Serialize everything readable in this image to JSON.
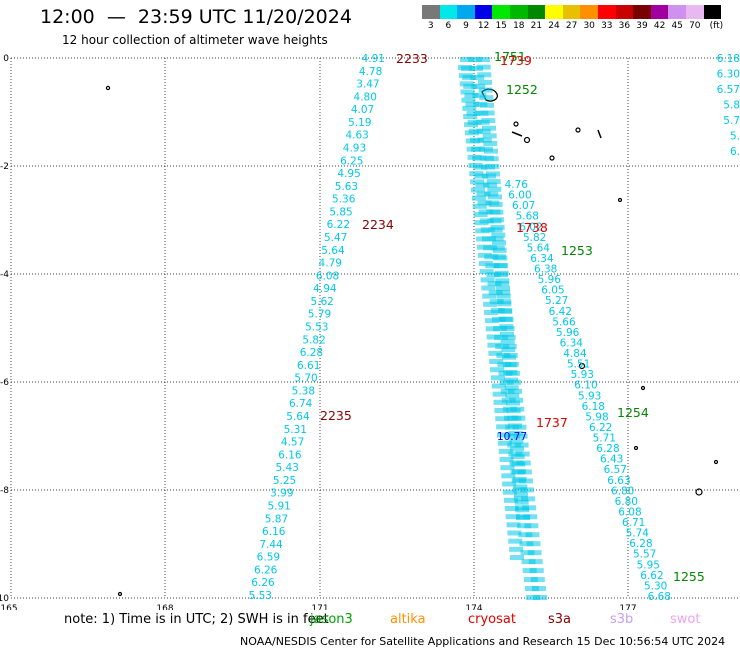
{
  "header": {
    "title": "12:00  —  23:59 UTC 11/20/2024",
    "subtitle": "12 hour collection of altimeter wave heights"
  },
  "colorbar": {
    "ticks": [
      "3",
      "6",
      "9",
      "12",
      "15",
      "18",
      "21",
      "24",
      "27",
      "30",
      "33",
      "36",
      "39",
      "42",
      "45",
      "70",
      "(ft)"
    ],
    "colors": [
      "#787878",
      "#00e8e8",
      "#00a8f0",
      "#0000e8",
      "#00e800",
      "#00b800",
      "#008800",
      "#ffff00",
      "#e8c000",
      "#ff9000",
      "#ff0000",
      "#c80000",
      "#780000",
      "#a000a0",
      "#d090f0",
      "#e8b8f0",
      "#000000"
    ]
  },
  "map": {
    "x_ticks": [
      "165",
      "168",
      "171",
      "174",
      "177"
    ],
    "y_ticks": [
      "0",
      "-2",
      "-4",
      "-6",
      "-8",
      "-10"
    ],
    "passes": [
      {
        "id": "2233",
        "color": "#8b0000"
      },
      {
        "id": "2234",
        "color": "#8b0000"
      },
      {
        "id": "2235",
        "color": "#8b0000"
      },
      {
        "id": "1751",
        "color": "#008800"
      },
      {
        "id": "1252",
        "color": "#008800"
      },
      {
        "id": "1253",
        "color": "#008800"
      },
      {
        "id": "1254",
        "color": "#008800"
      },
      {
        "id": "1255",
        "color": "#008800"
      },
      {
        "id": "1739",
        "color": "#e00000"
      },
      {
        "id": "1738",
        "color": "#e00000"
      },
      {
        "id": "1737",
        "color": "#e00000"
      }
    ],
    "track_a": [
      "4.91",
      "4.78",
      "3.47",
      "4.80",
      "4.07",
      "5.19",
      "4.63",
      "4.93",
      "6.25",
      "4.95",
      "5.63",
      "5.36",
      "5.85",
      "6.22",
      "5.47",
      "5.64",
      "4.79",
      "6.08",
      "4.94",
      "5.62",
      "5.79",
      "5.53",
      "5.82",
      "6.28",
      "6.61",
      "5.70",
      "5.38",
      "6.74",
      "5.64",
      "5.31",
      "4.57",
      "6.16",
      "5.43",
      "5.25",
      "3.99",
      "5.91",
      "5.87",
      "6.16",
      "7.44",
      "6.59",
      "6.26",
      "6.26",
      "5.53"
    ],
    "track_b": [
      "4.76",
      "6.00",
      "6.07",
      "5.68",
      "6.02",
      "5.82",
      "5.64",
      "6.34",
      "6.38",
      "5.96",
      "6.05",
      "5.27",
      "6.42",
      "5.66",
      "5.96",
      "6.34",
      "4.84",
      "5.51",
      "5.93",
      "6.10",
      "5.93",
      "6.18",
      "5.98",
      "6.22",
      "5.71",
      "6.28",
      "6.43",
      "6.57",
      "6.63",
      "6.80",
      "6.80",
      "6.08",
      "6.71",
      "5.74",
      "6.28",
      "5.57",
      "5.95",
      "6.62",
      "5.30",
      "6.68"
    ],
    "track_c": [
      "6.18",
      "6.30",
      "6.57",
      "5.8",
      "5.7",
      "5.",
      "6."
    ],
    "highlight_value": "10.77",
    "highlight_color": "#0000e8",
    "track_color": "#00c8e8"
  },
  "footer": {
    "note": "note:  1) Time is in UTC; 2) SWH is in feet",
    "satellites": [
      {
        "name": "jason3",
        "color": "#00a000"
      },
      {
        "name": "altika",
        "color": "#ff9000"
      },
      {
        "name": "cryosat",
        "color": "#e00000"
      },
      {
        "name": "s3a",
        "color": "#8b0000"
      },
      {
        "name": "s3b",
        "color": "#c8a0f0"
      },
      {
        "name": "swot",
        "color": "#f0a0f0"
      }
    ],
    "credit": "NOAA/NESDIS Center for Satellite Applications and Research     15 Dec 10:56:54 UTC 2024"
  }
}
